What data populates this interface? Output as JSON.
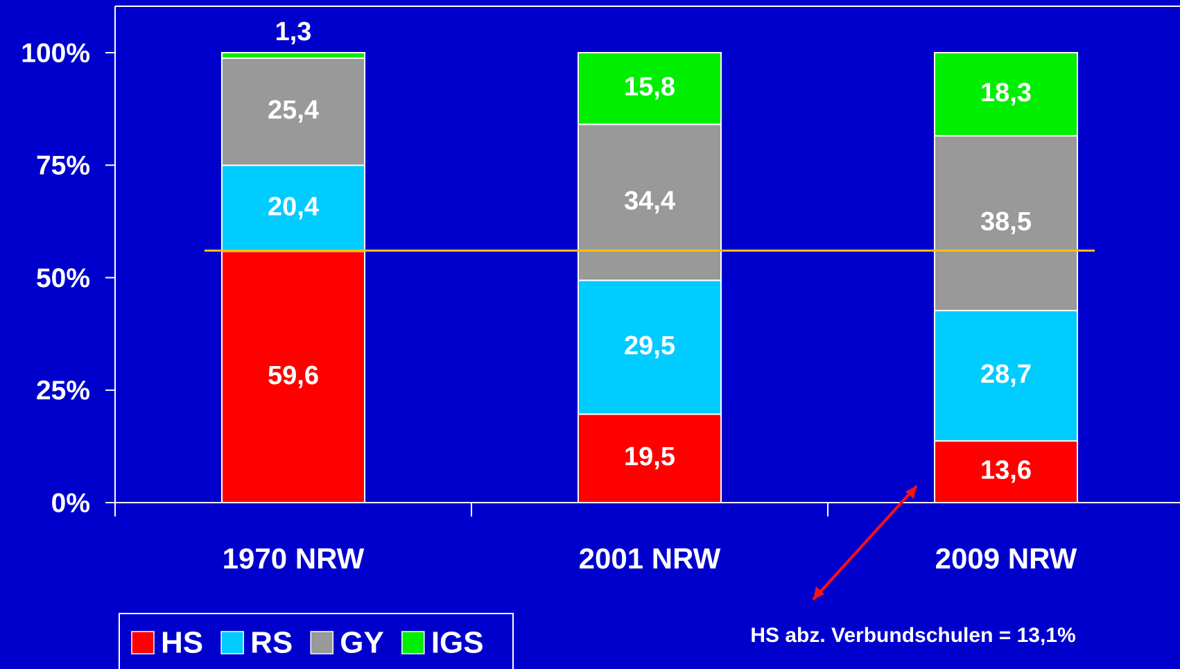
{
  "chart_data": {
    "type": "bar",
    "stacking": "percent",
    "categories": [
      "1970 NRW",
      "2001 NRW",
      "2009 NRW"
    ],
    "series": [
      {
        "name": "HS",
        "color": "#ff0000",
        "values": [
          59.6,
          19.5,
          13.6
        ],
        "value_labels": [
          "59,6",
          "19,5",
          "13,6"
        ]
      },
      {
        "name": "RS",
        "color": "#00ccff",
        "values": [
          20.4,
          29.5,
          28.7
        ],
        "value_labels": [
          "20,4",
          "29,5",
          "28,7"
        ]
      },
      {
        "name": "GY",
        "color": "#999999",
        "values": [
          25.4,
          34.4,
          38.5
        ],
        "value_labels": [
          "25,4",
          "34,4",
          "38,5"
        ]
      },
      {
        "name": "IGS",
        "color": "#00ee00",
        "values": [
          1.3,
          15.8,
          18.3
        ],
        "value_labels": [
          "1,3",
          "15,8",
          "18,3"
        ]
      }
    ],
    "ylim": [
      0,
      100
    ],
    "yticks": [
      {
        "value": 0,
        "label": "0%"
      },
      {
        "value": 25,
        "label": "25%"
      },
      {
        "value": 50,
        "label": "50%"
      },
      {
        "value": 75,
        "label": "75%"
      },
      {
        "value": 100,
        "label": "100%"
      }
    ],
    "reference_line": {
      "value": 56,
      "color": "#ffc000"
    },
    "annotation": "HS abz. Verbundschulen = 13,1%",
    "legend": "bottom-left"
  }
}
